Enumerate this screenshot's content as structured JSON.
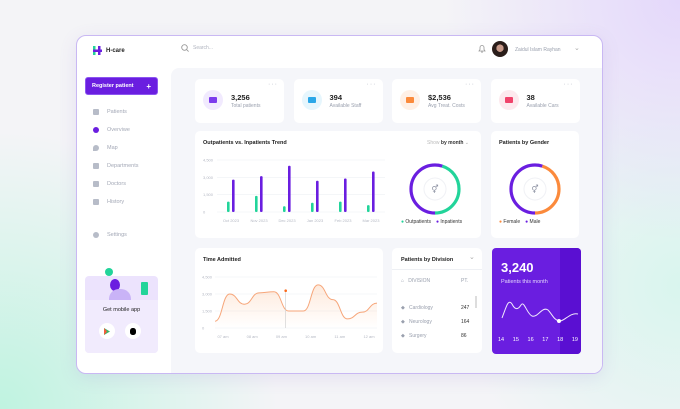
{
  "brand": {
    "name": "H-care",
    "colors": {
      "primary": "#6a1ee0",
      "green": "#22d49a",
      "orange": "#fb8a3c"
    }
  },
  "header": {
    "search_placeholder": "Search...",
    "user_name": "Zaidul Islam Rayhan"
  },
  "sidebar": {
    "register_label": "Register patient",
    "items": [
      {
        "label": "Patients",
        "icon": "users-icon"
      },
      {
        "label": "Overviwe",
        "icon": "pie-icon",
        "active": true
      },
      {
        "label": "Map",
        "icon": "map-pin-icon"
      },
      {
        "label": "Departments",
        "icon": "building-icon"
      },
      {
        "label": "Doctors",
        "icon": "doctor-icon"
      },
      {
        "label": "History",
        "icon": "history-icon"
      }
    ],
    "settings_label": "Settings",
    "promo": {
      "label": "Get mobile app"
    }
  },
  "stats": [
    {
      "value": "3,256",
      "label": "Total patients",
      "icon": "bed-icon",
      "color": "#7c3aed",
      "bg": "#f1eafe"
    },
    {
      "value": "394",
      "label": "Available Staff",
      "icon": "staff-icon",
      "color": "#2aa7e8",
      "bg": "#e6f6fd"
    },
    {
      "value": "$2,536",
      "label": "Avg Treat. Costs",
      "icon": "wallet-icon",
      "color": "#fb8a3c",
      "bg": "#fff0e6"
    },
    {
      "value": "38",
      "label": "Available Cars",
      "icon": "ambulance-icon",
      "color": "#f0436b",
      "bg": "#fde9ee"
    }
  ],
  "trend": {
    "title": "Outpatients vs. Inpatients Trend",
    "show_label": "Show",
    "show_value": "by month"
  },
  "gender": {
    "title": "Patients by Gender"
  },
  "time": {
    "title": "Time Admitted"
  },
  "division": {
    "title": "Patients by Division",
    "col1": "DIVISION",
    "col2": "PT.",
    "rows": [
      {
        "name": "Cardiology",
        "value": "247"
      },
      {
        "name": "Neurology",
        "value": "164"
      },
      {
        "name": "Surgery",
        "value": "86"
      }
    ]
  },
  "month": {
    "value": "3,240",
    "label": "Patients this month",
    "days": [
      "14",
      "15",
      "16",
      "17",
      "18",
      "19"
    ],
    "selected_day": "19"
  },
  "chart_data": [
    {
      "type": "bar",
      "categories": [
        "Oct 2023",
        "Nov 2023",
        "Dec 2023",
        "Jan 2023",
        "Feb 2023",
        "Mar 2023"
      ],
      "yticks": [
        "4,500",
        "3,000",
        "1,500",
        "0"
      ],
      "ylim": [
        0,
        4500
      ],
      "grid": true,
      "series": [
        {
          "name": "Outpatients",
          "color": "#22d49a",
          "values": [
            900,
            1400,
            500,
            800,
            900,
            600
          ]
        },
        {
          "name": "Inpatients",
          "color": "#6a1ee0",
          "values": [
            2800,
            3100,
            4000,
            2700,
            2900,
            3500
          ]
        }
      ]
    },
    {
      "type": "pie",
      "donut": true,
      "series": [
        {
          "name": "Outpatients",
          "value": 45,
          "color": "#22d49a"
        },
        {
          "name": "Inpatients",
          "value": 55,
          "color": "#6a1ee0"
        }
      ]
    },
    {
      "type": "pie",
      "donut": true,
      "series": [
        {
          "name": "Female",
          "value": 45,
          "color": "#fb8a3c"
        },
        {
          "name": "Male",
          "value": 55,
          "color": "#6a1ee0"
        }
      ]
    },
    {
      "type": "area",
      "categories": [
        "07 am",
        "08 am",
        "09 am",
        "10 am",
        "11 am",
        "12 am"
      ],
      "yticks": [
        "4,500",
        "3,000",
        "1,500",
        "0"
      ],
      "ylim": [
        0,
        4500
      ],
      "x": [
        0,
        0.5,
        1,
        1.5,
        2,
        2.5,
        3,
        3.5,
        4,
        4.5,
        5,
        5.5
      ],
      "values": [
        600,
        3000,
        2100,
        3100,
        3200,
        1500,
        1500,
        3800,
        2500,
        800,
        1400,
        2200
      ],
      "highlight_x": 2.4
    }
  ]
}
